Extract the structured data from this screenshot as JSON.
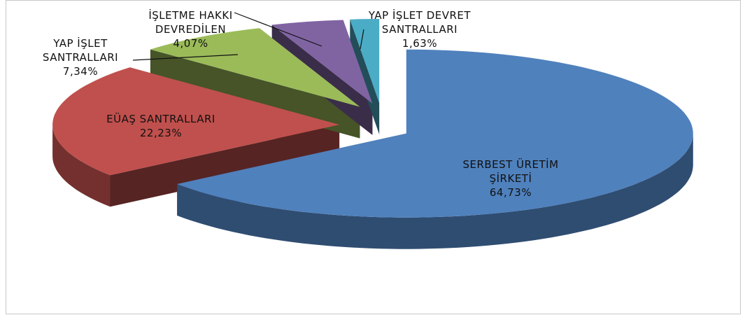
{
  "chart_data": {
    "type": "pie",
    "categories": [
      "SERBEST ÜRETİM ŞİRKETİ",
      "EÜAŞ SANTRALLARI",
      "YAP İŞLET SANTRALLARI",
      "İŞLETME HAKKI DEVREDİLEN",
      "YAP İŞLET DEVRET SANTRALLARI"
    ],
    "values": [
      64.73,
      22.23,
      7.34,
      4.07,
      1.63
    ],
    "value_labels": [
      "64,73%",
      "22,23%",
      "7,34%",
      "4,07%",
      "1,63%"
    ],
    "colors": [
      "#4f81bd",
      "#c0504d",
      "#9bbb59",
      "#8064a2",
      "#4bacc6"
    ]
  }
}
